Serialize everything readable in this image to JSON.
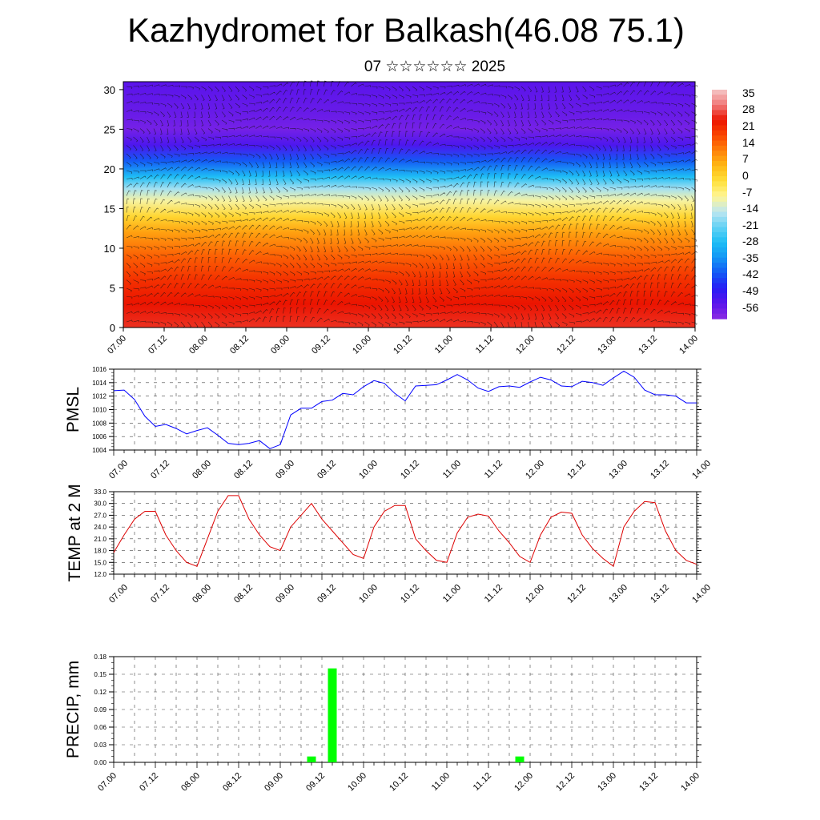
{
  "title": "Kazhydromet for Balkash(46.08 75.1)",
  "subtitle": "07 ☆☆☆☆☆☆ 2025",
  "time_labels": [
    "07.00",
    "07.12",
    "08.00",
    "08.12",
    "09.00",
    "09.12",
    "10.00",
    "10.12",
    "11.00",
    "11.12",
    "12.00",
    "12.12",
    "13.00",
    "13.12",
    "14.00"
  ],
  "colors": {
    "pmsl_line": "#0000ff",
    "temp_line": "#dd0000",
    "precip_bar": "#00ff00"
  },
  "chart_data": [
    {
      "type": "heatmap",
      "name": "temperature-wind-cross-section",
      "yticks": [
        "0",
        "5",
        "10",
        "15",
        "20",
        "25",
        "30"
      ],
      "ylim": [
        0,
        31
      ],
      "colorbar_labels": [
        "35",
        "28",
        "21",
        "14",
        "7",
        "0",
        "-7",
        "-14",
        "-21",
        "-28",
        "-35",
        "-42",
        "-49",
        "-56"
      ],
      "colorbar_range": [
        -63,
        42
      ],
      "level_profile_temperature": [
        30,
        28,
        24,
        18,
        10,
        2,
        -8,
        -16,
        -28,
        -42,
        -54,
        -60,
        -58,
        -56
      ],
      "profile_heights": [
        0,
        3,
        6,
        9,
        12,
        14,
        16,
        17.5,
        19,
        21,
        23,
        25,
        27,
        31
      ],
      "overlay": "wind barbs"
    },
    {
      "type": "line",
      "name": "PMSL",
      "ylabel": "PMSL",
      "yticks": [
        "1004",
        "1006",
        "1008",
        "1010",
        "1012",
        "1014",
        "1016"
      ],
      "ylim": [
        1004,
        1016
      ],
      "x_step_hours": 3,
      "values": [
        1012.8,
        1012.9,
        1011.5,
        1009.0,
        1007.5,
        1007.8,
        1007.2,
        1006.4,
        1006.9,
        1007.3,
        1006.2,
        1005.0,
        1004.8,
        1005.0,
        1005.4,
        1004.2,
        1004.8,
        1009.2,
        1010.2,
        1010.2,
        1011.2,
        1011.4,
        1012.4,
        1012.2,
        1013.4,
        1014.3,
        1013.9,
        1012.4,
        1011.3,
        1013.5,
        1013.6,
        1013.7,
        1014.4,
        1015.2,
        1014.4,
        1013.2,
        1012.7,
        1013.4,
        1013.5,
        1013.3,
        1014.1,
        1014.8,
        1014.4,
        1013.5,
        1013.4,
        1014.2,
        1014.0,
        1013.6,
        1014.7,
        1015.7,
        1014.8,
        1012.9,
        1012.2,
        1012.2,
        1012.0,
        1011.0,
        1011.0
      ]
    },
    {
      "type": "line",
      "name": "TEMP at 2 M",
      "ylabel": "TEMP at 2 M",
      "yticks": [
        "12.0",
        "15.0",
        "18.0",
        "21.0",
        "24.0",
        "27.0",
        "30.0",
        "33.0"
      ],
      "ylim": [
        12,
        33
      ],
      "x_step_hours": 3,
      "values": [
        17.5,
        22,
        26,
        28,
        28,
        22,
        18,
        15,
        14,
        21,
        28,
        32,
        32,
        26,
        22,
        19,
        18,
        24,
        27,
        30,
        26,
        23,
        20,
        17,
        16,
        24,
        28,
        29.5,
        29.5,
        21,
        18,
        15.5,
        15,
        22.5,
        26.5,
        27.3,
        26.8,
        23,
        20,
        16.5,
        15,
        22,
        26.5,
        27.8,
        27.5,
        22,
        18.5,
        16,
        14,
        24,
        28,
        30.5,
        30.2,
        23,
        18,
        15.5,
        14.5
      ]
    },
    {
      "type": "bar",
      "name": "PRECIP",
      "ylabel": "PRECIP, mm",
      "yticks": [
        "0.00",
        "0.03",
        "0.06",
        "0.09",
        "0.12",
        "0.15",
        "0.18"
      ],
      "ylim": [
        0,
        0.18
      ],
      "bars": [
        {
          "t": 57,
          "value": 0.01
        },
        {
          "t": 63,
          "value": 0.16
        },
        {
          "t": 117,
          "value": 0.01
        }
      ]
    }
  ]
}
